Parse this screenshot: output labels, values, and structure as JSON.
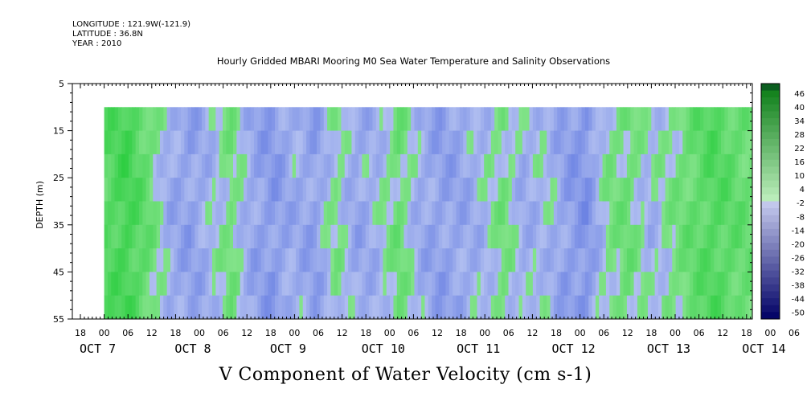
{
  "header": {
    "longitude": "LONGITUDE : 121.9W(-121.9)",
    "latitude": "LATITUDE : 36.8N",
    "year": "YEAR : 2010",
    "title": "Hourly Gridded MBARI Mooring M0 Sea Water Temperature and Salinity Observations"
  },
  "caption": "V Component of Water Velocity (cm s-1)",
  "colors": {
    "positive": "#2ecc4a",
    "negative": "#6f7fe0",
    "neutral": "#b0bef0",
    "frame": "#000000"
  },
  "chart_data": {
    "type": "heatmap",
    "title": "Hourly Gridded MBARI Mooring M0 Sea Water Temperature and Salinity Observations",
    "ylabel": "DEPTH (m)",
    "xlabel": "",
    "ylim": [
      55,
      5
    ],
    "y_ticks": [
      "5",
      "15",
      "25",
      "35",
      "45",
      "55"
    ],
    "x_hour_ticks": [
      "18",
      "00",
      "06",
      "12",
      "18",
      "00",
      "06",
      "12",
      "18",
      "00",
      "06",
      "12",
      "18",
      "00",
      "06",
      "12",
      "18",
      "00",
      "06",
      "12",
      "18",
      "00",
      "06",
      "12",
      "18",
      "00",
      "06",
      "12",
      "18",
      "00",
      "06",
      "12"
    ],
    "x_date_labels": [
      "OCT  7",
      "OCT  8",
      "OCT  9",
      "OCT 10",
      "OCT 11",
      "OCT 12",
      "OCT 13",
      "OCT 14"
    ],
    "data_depth_range_m": [
      10,
      55
    ],
    "colorbar": {
      "labels": [
        "46",
        "40",
        "34",
        "28",
        "22",
        "16",
        "10",
        "4",
        "-2",
        "-8",
        "-14",
        "-20",
        "-26",
        "-32",
        "-38",
        "-44",
        "-50"
      ],
      "range": [
        -50,
        50
      ]
    },
    "v_profile_by_time": {
      "times": [
        "OCT 7 00",
        "OCT 7 06",
        "OCT 7 12",
        "OCT 7 18",
        "OCT 8 00",
        "OCT 8 06",
        "OCT 8 12",
        "OCT 8 18",
        "OCT 9 00",
        "OCT 9 06",
        "OCT 9 12",
        "OCT 9 18",
        "OCT 10 00",
        "OCT 10 06",
        "OCT 10 12",
        "OCT 10 18",
        "OCT 11 00",
        "OCT 11 06",
        "OCT 11 12",
        "OCT 11 18",
        "OCT 12 00",
        "OCT 12 06",
        "OCT 12 12",
        "OCT 12 18",
        "OCT 13 00",
        "OCT 13 06",
        "OCT 13 12",
        "OCT 13 18",
        "OCT 14 00",
        "OCT 14 06",
        "OCT 14 12",
        "OCT 14 18"
      ],
      "values": [
        12,
        18,
        8,
        -6,
        -10,
        -4,
        4,
        -8,
        -12,
        -6,
        -10,
        2,
        -8,
        -4,
        6,
        -6,
        -10,
        -8,
        -4,
        4,
        -6,
        -2,
        -10,
        -14,
        2,
        6,
        -4,
        2,
        8,
        14,
        10,
        6
      ]
    }
  }
}
